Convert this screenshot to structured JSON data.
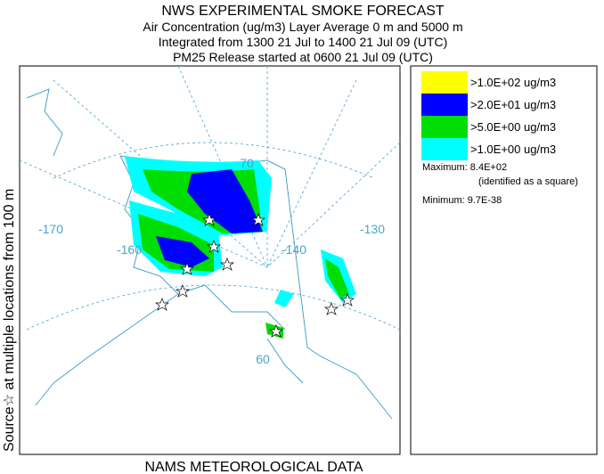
{
  "header": {
    "title": "NWS EXPERIMENTAL SMOKE FORECAST",
    "lines": [
      "Air Concentration (ug/m3) Layer Average    0 m and  5000 m",
      "Integrated from 1300 21 Jul to 1400 21 Jul 09 (UTC)",
      "PM25 Release started at 0600 21 Jul 09 (UTC)"
    ]
  },
  "side_label": "Source☆ at multiple locations  from  100 m",
  "footer": "NAMS METEOROLOGICAL DATA",
  "map": {
    "graticule_labels": [
      "-170",
      "-160",
      "-140",
      "-130",
      "70",
      "60"
    ]
  },
  "legend": {
    "entries": [
      {
        "label": ">1.0E+02 ug/m3",
        "color": "#ffff00"
      },
      {
        "label": ">2.0E+01 ug/m3",
        "color": "#0000ff"
      },
      {
        "label": ">5.0E+00 ug/m3",
        "color": "#00dd00"
      },
      {
        "label": ">1.0E+00 ug/m3",
        "color": "#00ffff"
      }
    ],
    "maximum": "Maximum: 8.4E+02",
    "maximum_note": "(identified as a square)",
    "minimum": "Minimum: 9.7E-38"
  }
}
